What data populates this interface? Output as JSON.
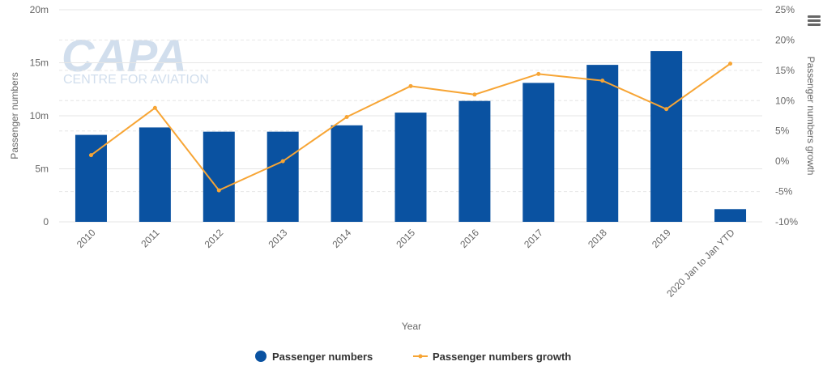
{
  "watermark": {
    "brand": "CAPA",
    "subtitle": "CENTRE FOR AVIATION"
  },
  "chart_data": {
    "type": "bar",
    "xlabel": "Year",
    "ylabel": "Passenger numbers",
    "y2label": "Passenger numbers growth",
    "categories": [
      "2010",
      "2011",
      "2012",
      "2013",
      "2014",
      "2015",
      "2016",
      "2017",
      "2018",
      "2019",
      "2020 Jan to Jan YTD"
    ],
    "ylim": [
      0,
      20000000
    ],
    "y2lim": [
      -10,
      25
    ],
    "y_ticks": [
      "0",
      "5m",
      "10m",
      "15m",
      "20m"
    ],
    "y2_ticks": [
      "-10%",
      "-5%",
      "0%",
      "5%",
      "10%",
      "15%",
      "20%",
      "25%"
    ],
    "grid": true,
    "legend_position": "bottom",
    "series": [
      {
        "name": "Passenger numbers",
        "type": "bar",
        "color": "#0a52a1",
        "values": [
          8200000,
          8900000,
          8500000,
          8500000,
          9100000,
          10300000,
          11400000,
          13100000,
          14800000,
          16100000,
          1200000
        ]
      },
      {
        "name": "Passenger numbers growth",
        "type": "line",
        "axis": "right",
        "color": "#f7a535",
        "values": [
          1.0,
          8.8,
          -4.8,
          0.0,
          7.3,
          12.4,
          11.0,
          14.4,
          13.3,
          8.6,
          16.1
        ]
      }
    ]
  }
}
